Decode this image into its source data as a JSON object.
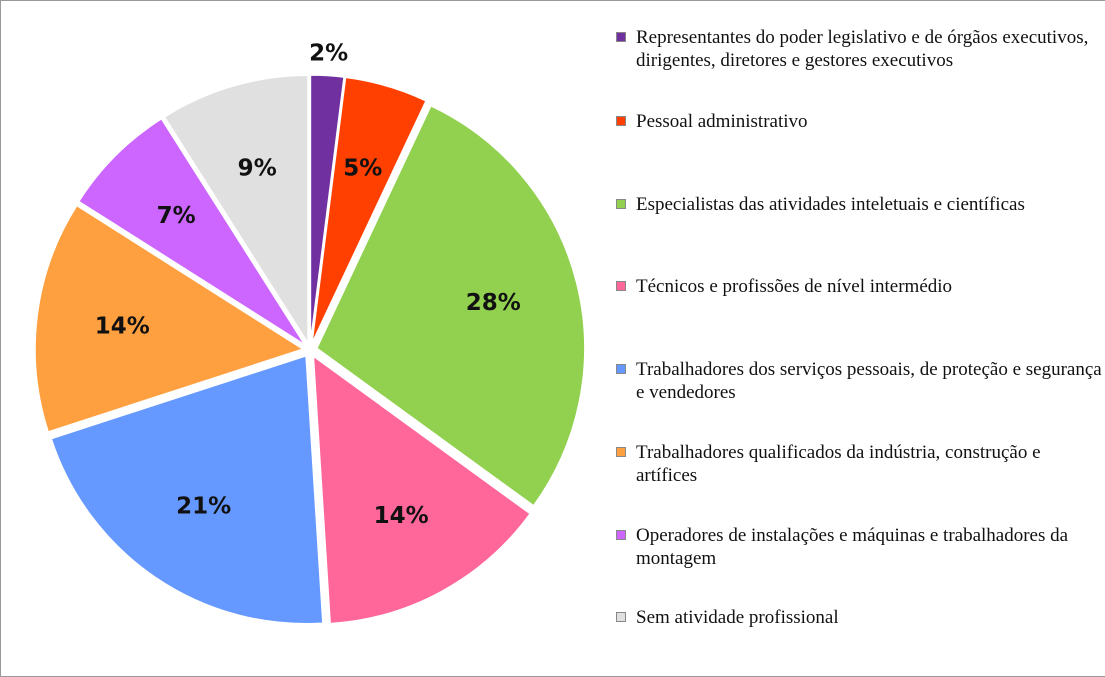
{
  "chart_data": {
    "type": "pie",
    "categories": [
      "Representantes do poder legislativo e de órgãos executivos, dirigentes, diretores e gestores executivos",
      "Pessoal administrativo",
      "Especialistas das atividades inteletuais e científicas",
      "Técnicos e profissões de nível intermédio",
      "Trabalhadores dos serviços pessoais, de proteção e segurança e vendedores",
      "Trabalhadores qualificados da indústria, construção e artífices",
      "Operadores de instalações e máquinas e trabalhadores da montagem",
      "Sem atividade profissional"
    ],
    "values": [
      2,
      5,
      28,
      14,
      21,
      14,
      7,
      9
    ],
    "colors": [
      "#7030a0",
      "#ff4000",
      "#92d050",
      "#ff6699",
      "#6699ff",
      "#ffa040",
      "#cc66ff",
      "#e0e0e0"
    ],
    "legend": "right"
  }
}
